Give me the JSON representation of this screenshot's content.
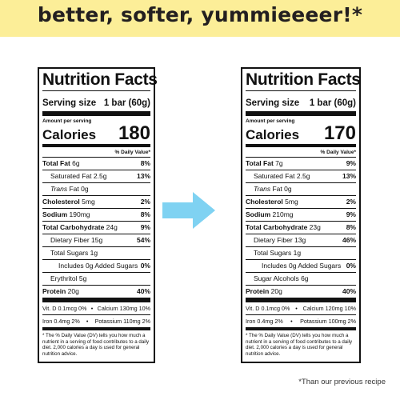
{
  "headline": "better, softer, yummieeeer!*",
  "colors": {
    "banner": "#fcee98",
    "arrow": "#7fd2f2",
    "text": "#111111"
  },
  "labels": {
    "title": "Nutrition Facts",
    "serving_size": "Serving size",
    "amount_per_serving": "Amount per serving",
    "calories": "Calories",
    "daily_value": "% Daily Value*"
  },
  "left": {
    "serving_value": "1 bar (60g)",
    "calories": "180",
    "rows": {
      "total_fat": {
        "label": "Total Fat",
        "amount": "6g",
        "dv": "8%"
      },
      "sat_fat": {
        "label": "Saturated Fat",
        "amount": "2.5g",
        "dv": "13%"
      },
      "trans_fat": {
        "label": "Trans",
        "amount": " Fat 0g"
      },
      "cholesterol": {
        "label": "Cholesterol",
        "amount": "5mg",
        "dv": "2%"
      },
      "sodium": {
        "label": "Sodium",
        "amount": "190mg",
        "dv": "8%"
      },
      "carb": {
        "label": "Total Carbohydrate",
        "amount": "24g",
        "dv": "9%"
      },
      "fiber": {
        "label": "Dietary Fiber",
        "amount": "15g",
        "dv": "54%"
      },
      "sugars": {
        "label": "Total Sugars",
        "amount": "1g"
      },
      "added_sugars": {
        "label": "Includes 0g Added Sugars",
        "dv": "0%"
      },
      "alcohol": {
        "label": "Erythritol",
        "amount": "5g"
      },
      "protein": {
        "label": "Protein",
        "amount": "20g",
        "dv": "40%"
      }
    },
    "vit_row1": {
      "a": "Vit. D 0.1mcg 0%",
      "b": "Calcium 130mg 10%"
    },
    "vit_row2": {
      "a": "Iron 0.4mg 2%",
      "b": "Potassium 110mg 2%"
    },
    "footnote": "* The % Daily Value (DV) tells you how much a nutrient in a serving of food contributes to a daily diet. 2,000 calories a day is used for general nutrition advice."
  },
  "right": {
    "serving_value": "1 bar (60g)",
    "calories": "170",
    "rows": {
      "total_fat": {
        "label": "Total Fat",
        "amount": "7g",
        "dv": "9%"
      },
      "sat_fat": {
        "label": "Saturated Fat",
        "amount": "2.5g",
        "dv": "13%"
      },
      "trans_fat": {
        "label": "Trans",
        "amount": " Fat 0g"
      },
      "cholesterol": {
        "label": "Cholesterol",
        "amount": "5mg",
        "dv": "2%"
      },
      "sodium": {
        "label": "Sodium",
        "amount": "210mg",
        "dv": "9%"
      },
      "carb": {
        "label": "Total Carbohydrate",
        "amount": "23g",
        "dv": "8%"
      },
      "fiber": {
        "label": "Dietary Fiber",
        "amount": "13g",
        "dv": "46%"
      },
      "sugars": {
        "label": "Total Sugars",
        "amount": "1g"
      },
      "added_sugars": {
        "label": "Includes 0g Added Sugars",
        "dv": "0%"
      },
      "alcohol": {
        "label": "Sugar Alcohols",
        "amount": "6g"
      },
      "protein": {
        "label": "Protein",
        "amount": "20g",
        "dv": "40%"
      }
    },
    "vit_row1": {
      "a": "Vit. D 0.1mcg 0%",
      "b": "Calcium 120mg 10%"
    },
    "vit_row2": {
      "a": "Iron 0.4mg 2%",
      "b": "Potassium 100mg 2%"
    },
    "footnote": "* The % Daily Value (DV) tells you how much a nutrient in a serving of food contributes to a daily diet. 2,000 calories a day is used for general nutrition advice."
  },
  "footnote_note": "*Than our previous recipe"
}
